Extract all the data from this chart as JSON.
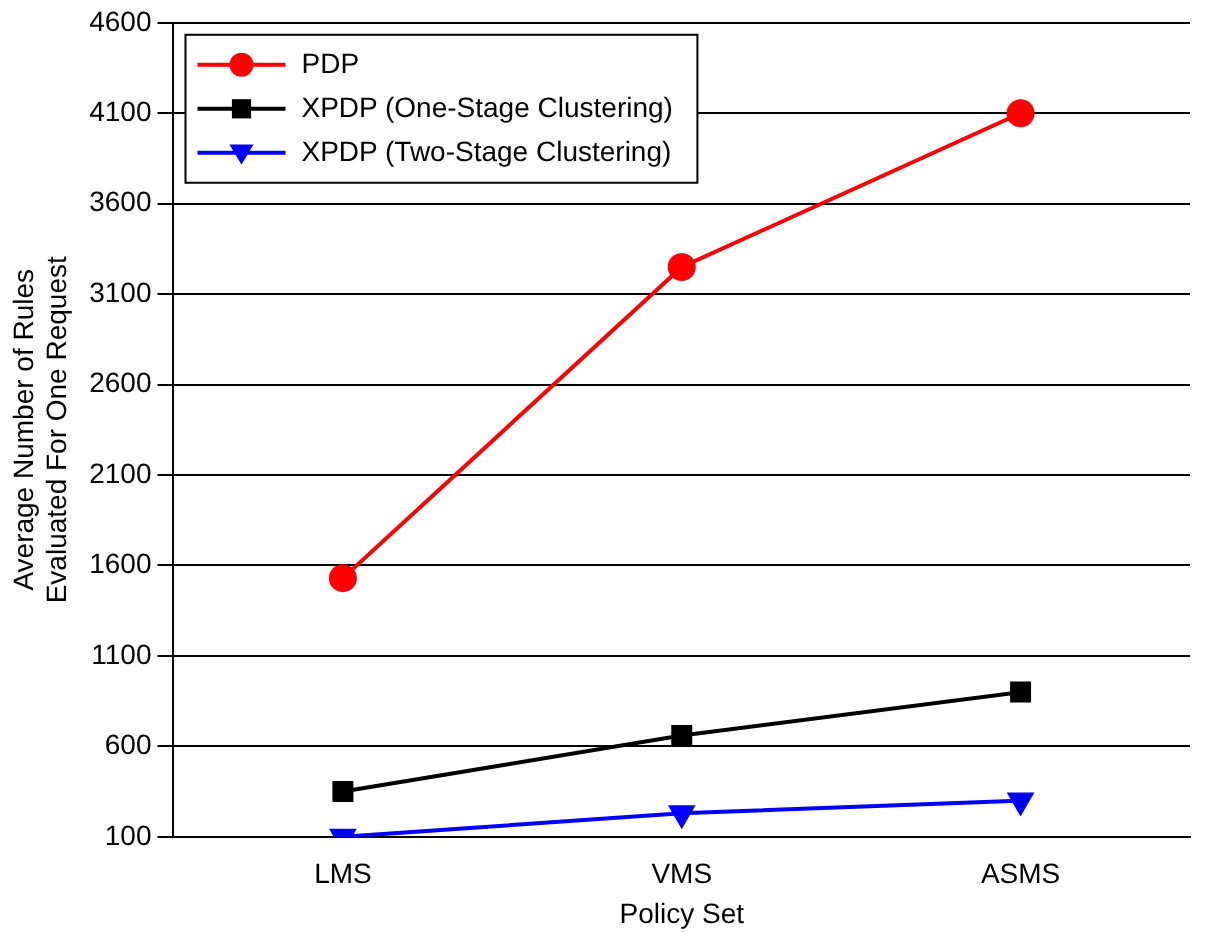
{
  "chart_data": {
    "type": "line",
    "xlabel": "Policy Set",
    "ylabel": "Average Number of Rules\nEvaluated For One Request",
    "categories": [
      "LMS",
      "VMS",
      "ASMS"
    ],
    "series": [
      {
        "name": "PDP",
        "color": "#ff0000",
        "marker": "circle",
        "values": [
          1530,
          3250,
          4100
        ]
      },
      {
        "name": "XPDP (One-Stage Clustering)",
        "color": "#000000",
        "marker": "square",
        "values": [
          350,
          660,
          900
        ]
      },
      {
        "name": "XPDP (Two-Stage Clustering)",
        "color": "#0000ff",
        "marker": "triangle-down",
        "values": [
          100,
          230,
          300
        ]
      }
    ],
    "ylim": [
      100,
      4600
    ],
    "yticks": [
      100,
      600,
      1100,
      1600,
      2100,
      2600,
      3100,
      3600,
      4100,
      4600
    ],
    "grid": "y",
    "legend": "top left",
    "line_style": "solid"
  }
}
